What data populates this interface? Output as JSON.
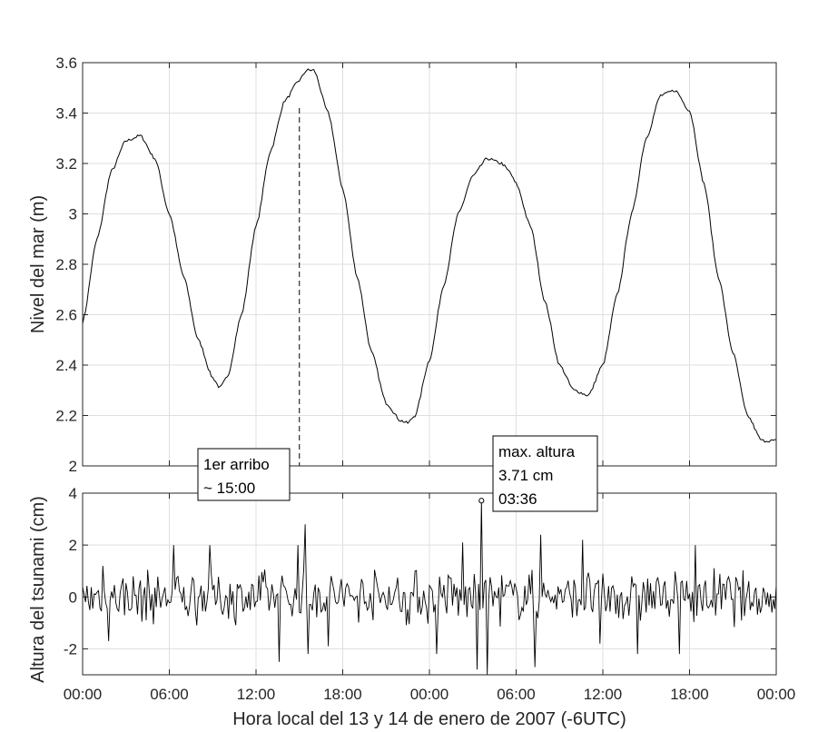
{
  "chart_data": [
    {
      "type": "line",
      "ylabel": "Nivel del mar (m)",
      "ylim": [
        2,
        3.6
      ],
      "yticks": [
        "2",
        "2.2",
        "2.4",
        "2.6",
        "2.8",
        "3",
        "3.2",
        "3.4",
        "3.6"
      ],
      "xlim_hours": [
        0,
        48
      ],
      "grid": true,
      "series": [
        {
          "x_hours": [
            0,
            1,
            2,
            3,
            4,
            5,
            6,
            7,
            8,
            9,
            9.5,
            10,
            11,
            12,
            13,
            14,
            15,
            15.5,
            16,
            17,
            18,
            19,
            20,
            21,
            22,
            22.5,
            23,
            24,
            25,
            26,
            27,
            28,
            29,
            29.5,
            30,
            31,
            32,
            33,
            34,
            35,
            36,
            37,
            38,
            39,
            40,
            41,
            42,
            43,
            44,
            45,
            46,
            47,
            48
          ],
          "y": [
            2.57,
            2.9,
            3.17,
            3.29,
            3.31,
            3.22,
            3.0,
            2.75,
            2.5,
            2.35,
            2.31,
            2.35,
            2.6,
            2.95,
            3.25,
            3.45,
            3.53,
            3.57,
            3.57,
            3.4,
            3.1,
            2.75,
            2.45,
            2.25,
            2.18,
            2.17,
            2.2,
            2.42,
            2.72,
            3.0,
            3.15,
            3.22,
            3.2,
            3.17,
            3.12,
            2.95,
            2.65,
            2.4,
            2.3,
            2.28,
            2.4,
            2.68,
            3.0,
            3.3,
            3.47,
            3.49,
            3.41,
            3.12,
            2.75,
            2.45,
            2.2,
            2.1,
            2.1
          ]
        }
      ],
      "annotation": {
        "x_hours": 15,
        "style": "dashed",
        "text_lines": [
          "1er arribo",
          "~ 15:00"
        ]
      }
    },
    {
      "type": "line",
      "ylabel": "Altura del tsunami (cm)",
      "xlabel": "Hora local del 13 y 14 de enero de 2007 (-6UTC)",
      "ylim": [
        -3,
        4
      ],
      "yticks": [
        "-2",
        "0",
        "2",
        "4"
      ],
      "xticks": [
        "00:00",
        "06:00",
        "12:00",
        "18:00",
        "00:00",
        "06:00",
        "12:00",
        "18:00",
        "00:00"
      ],
      "xlim_hours": [
        0,
        48
      ],
      "grid": true,
      "series": [
        {
          "noise_seed": 7,
          "approx_amplitude_cm": 1.2,
          "peaks": [
            {
              "x_hours": 1.4,
              "y": 1.2
            },
            {
              "x_hours": 1.8,
              "y": -1.7
            },
            {
              "x_hours": 6.3,
              "y": 2.0
            },
            {
              "x_hours": 8.8,
              "y": 2.0
            },
            {
              "x_hours": 13.6,
              "y": -2.5
            },
            {
              "x_hours": 14.9,
              "y": 2.0
            },
            {
              "x_hours": 15.6,
              "y": -2.2
            },
            {
              "x_hours": 15.4,
              "y": 2.8
            },
            {
              "x_hours": 17.0,
              "y": -1.9
            },
            {
              "x_hours": 24.5,
              "y": -2.2
            },
            {
              "x_hours": 26.3,
              "y": 2.1
            },
            {
              "x_hours": 27.3,
              "y": -2.8
            },
            {
              "x_hours": 27.6,
              "y": 3.71
            },
            {
              "x_hours": 28.0,
              "y": -3.0
            },
            {
              "x_hours": 31.3,
              "y": -2.7
            },
            {
              "x_hours": 31.7,
              "y": 2.4
            },
            {
              "x_hours": 34.6,
              "y": 2.2
            },
            {
              "x_hours": 35.8,
              "y": -1.8
            },
            {
              "x_hours": 38.4,
              "y": -2.2
            },
            {
              "x_hours": 41.3,
              "y": -2.2
            },
            {
              "x_hours": 42.4,
              "y": 2.0
            }
          ]
        }
      ],
      "marker": {
        "x_hours": 27.6,
        "y": 3.71,
        "symbol": "circle"
      },
      "annotation": {
        "text_lines": [
          "max. altura",
          "3.71 cm",
          "03:36"
        ]
      }
    }
  ]
}
